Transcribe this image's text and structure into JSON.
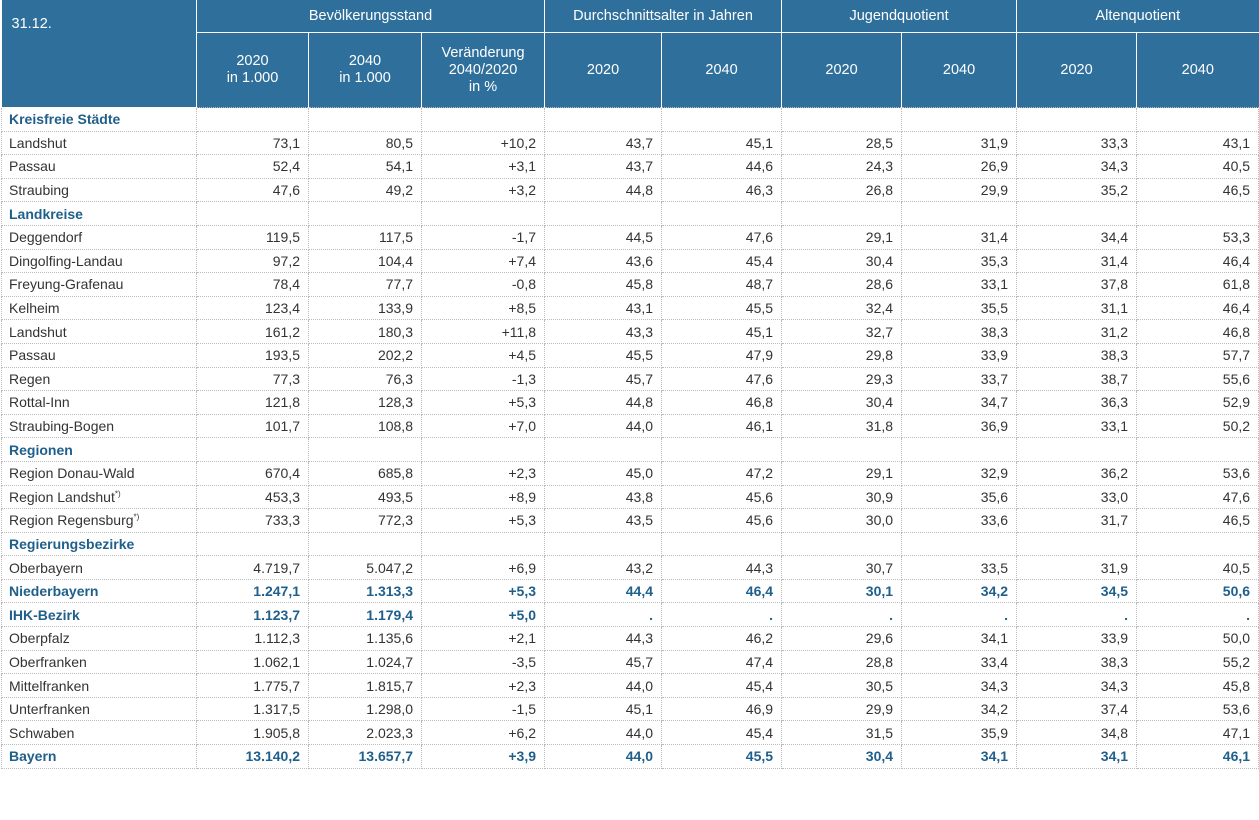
{
  "table": {
    "corner": "31.12.",
    "groups": [
      {
        "label": "Bevölkerungsstand",
        "span": 3
      },
      {
        "label": "Durchschnittsalter in Jahren",
        "span": 2
      },
      {
        "label": "Jugendquotient",
        "span": 2
      },
      {
        "label": "Altenquotient",
        "span": 2
      }
    ],
    "columns": [
      [
        "2020",
        "in 1.000"
      ],
      [
        "2040",
        "in 1.000"
      ],
      [
        "Veränderung",
        "2040/2020",
        "in %"
      ],
      [
        "2020"
      ],
      [
        "2040"
      ],
      [
        "2020"
      ],
      [
        "2040"
      ],
      [
        "2020"
      ],
      [
        "2040"
      ]
    ],
    "rows": [
      {
        "label": "Kreisfreie Städte",
        "section": true
      },
      {
        "label": "Landshut",
        "cells": [
          "73,1",
          "80,5",
          "+10,2",
          "43,7",
          "45,1",
          "28,5",
          "31,9",
          "33,3",
          "43,1"
        ]
      },
      {
        "label": "Passau",
        "cells": [
          "52,4",
          "54,1",
          "+3,1",
          "43,7",
          "44,6",
          "24,3",
          "26,9",
          "34,3",
          "40,5"
        ]
      },
      {
        "label": "Straubing",
        "cells": [
          "47,6",
          "49,2",
          "+3,2",
          "44,8",
          "46,3",
          "26,8",
          "29,9",
          "35,2",
          "46,5"
        ]
      },
      {
        "label": "Landkreise",
        "section": true
      },
      {
        "label": "Deggendorf",
        "cells": [
          "119,5",
          "117,5",
          "-1,7",
          "44,5",
          "47,6",
          "29,1",
          "31,4",
          "34,4",
          "53,3"
        ]
      },
      {
        "label": "Dingolfing-Landau",
        "cells": [
          "97,2",
          "104,4",
          "+7,4",
          "43,6",
          "45,4",
          "30,4",
          "35,3",
          "31,4",
          "46,4"
        ]
      },
      {
        "label": "Freyung-Grafenau",
        "cells": [
          "78,4",
          "77,7",
          "-0,8",
          "45,8",
          "48,7",
          "28,6",
          "33,1",
          "37,8",
          "61,8"
        ]
      },
      {
        "label": "Kelheim",
        "cells": [
          "123,4",
          "133,9",
          "+8,5",
          "43,1",
          "45,5",
          "32,4",
          "35,5",
          "31,1",
          "46,4"
        ]
      },
      {
        "label": "Landshut",
        "cells": [
          "161,2",
          "180,3",
          "+11,8",
          "43,3",
          "45,1",
          "32,7",
          "38,3",
          "31,2",
          "46,8"
        ]
      },
      {
        "label": "Passau",
        "cells": [
          "193,5",
          "202,2",
          "+4,5",
          "45,5",
          "47,9",
          "29,8",
          "33,9",
          "38,3",
          "57,7"
        ]
      },
      {
        "label": "Regen",
        "cells": [
          "77,3",
          "76,3",
          "-1,3",
          "45,7",
          "47,6",
          "29,3",
          "33,7",
          "38,7",
          "55,6"
        ]
      },
      {
        "label": "Rottal-Inn",
        "cells": [
          "121,8",
          "128,3",
          "+5,3",
          "44,8",
          "46,8",
          "30,4",
          "34,7",
          "36,3",
          "52,9"
        ]
      },
      {
        "label": "Straubing-Bogen",
        "cells": [
          "101,7",
          "108,8",
          "+7,0",
          "44,0",
          "46,1",
          "31,8",
          "36,9",
          "33,1",
          "50,2"
        ]
      },
      {
        "label": "Regionen",
        "section": true
      },
      {
        "label": "Region Donau-Wald",
        "cells": [
          "670,4",
          "685,8",
          "+2,3",
          "45,0",
          "47,2",
          "29,1",
          "32,9",
          "36,2",
          "53,6"
        ]
      },
      {
        "label": "Region Landshut",
        "note": "*)",
        "cells": [
          "453,3",
          "493,5",
          "+8,9",
          "43,8",
          "45,6",
          "30,9",
          "35,6",
          "33,0",
          "47,6"
        ]
      },
      {
        "label": "Region Regensburg",
        "note": "*)",
        "cells": [
          "733,3",
          "772,3",
          "+5,3",
          "43,5",
          "45,6",
          "30,0",
          "33,6",
          "31,7",
          "46,5"
        ]
      },
      {
        "label": "Regierungsbezirke",
        "section": true
      },
      {
        "label": "Oberbayern",
        "cells": [
          "4.719,7",
          "5.047,2",
          "+6,9",
          "43,2",
          "44,3",
          "30,7",
          "33,5",
          "31,9",
          "40,5"
        ]
      },
      {
        "label": "Niederbayern",
        "highlight": true,
        "cells": [
          "1.247,1",
          "1.313,3",
          "+5,3",
          "44,4",
          "46,4",
          "30,1",
          "34,2",
          "34,5",
          "50,6"
        ]
      },
      {
        "label": "IHK-Bezirk",
        "highlight": true,
        "cells": [
          "1.123,7",
          "1.179,4",
          "+5,0",
          ".",
          ".",
          ".",
          ".",
          ".",
          "."
        ]
      },
      {
        "label": "Oberpfalz",
        "cells": [
          "1.112,3",
          "1.135,6",
          "+2,1",
          "44,3",
          "46,2",
          "29,6",
          "34,1",
          "33,9",
          "50,0"
        ]
      },
      {
        "label": "Oberfranken",
        "cells": [
          "1.062,1",
          "1.024,7",
          "-3,5",
          "45,7",
          "47,4",
          "28,8",
          "33,4",
          "38,3",
          "55,2"
        ]
      },
      {
        "label": "Mittelfranken",
        "cells": [
          "1.775,7",
          "1.815,7",
          "+2,3",
          "44,0",
          "45,4",
          "30,5",
          "34,3",
          "34,3",
          "45,8"
        ]
      },
      {
        "label": "Unterfranken",
        "cells": [
          "1.317,5",
          "1.298,0",
          "-1,5",
          "45,1",
          "46,9",
          "29,9",
          "34,2",
          "37,4",
          "53,6"
        ]
      },
      {
        "label": "Schwaben",
        "cells": [
          "1.905,8",
          "2.023,3",
          "+6,2",
          "44,0",
          "45,4",
          "31,5",
          "35,9",
          "34,8",
          "47,1"
        ]
      },
      {
        "label": "Bayern",
        "highlight": true,
        "cells": [
          "13.140,2",
          "13.657,7",
          "+3,9",
          "44,0",
          "45,5",
          "30,4",
          "34,1",
          "34,1",
          "46,1"
        ]
      }
    ]
  }
}
